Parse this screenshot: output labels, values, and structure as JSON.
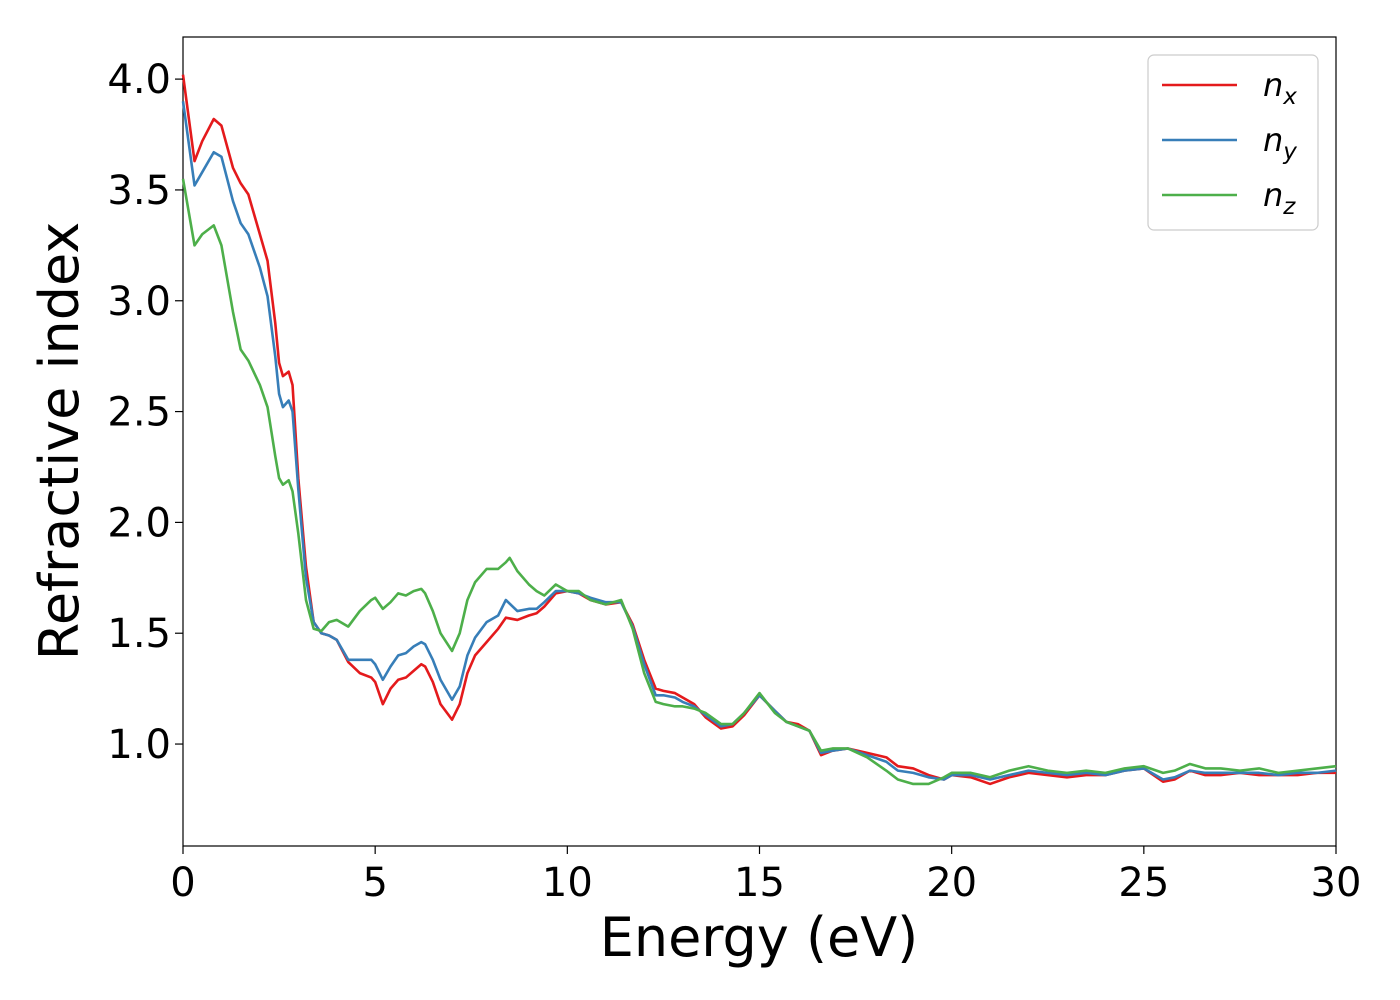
{
  "chart_data": {
    "type": "line",
    "title": "",
    "xlabel": "Energy (eV)",
    "ylabel": "Refractive index",
    "xlim": [
      0,
      30
    ],
    "ylim": [
      0.54,
      4.19
    ],
    "xticks": [
      0,
      5,
      10,
      15,
      20,
      25,
      30
    ],
    "yticks": [
      1.0,
      1.5,
      2.0,
      2.5,
      3.0,
      3.5,
      4.0
    ],
    "xtick_labels": [
      "0",
      "5",
      "10",
      "15",
      "20",
      "25",
      "30"
    ],
    "ytick_labels": [
      "1.0",
      "1.5",
      "2.0",
      "2.5",
      "3.0",
      "3.5",
      "4.0"
    ],
    "grid": false,
    "legend_position": "top-right",
    "series": [
      {
        "name": "n",
        "subscript": "x",
        "color": "#e41a1c",
        "points": [
          [
            0,
            4.02
          ],
          [
            0.3,
            3.63
          ],
          [
            0.5,
            3.72
          ],
          [
            0.8,
            3.82
          ],
          [
            1.0,
            3.79
          ],
          [
            1.3,
            3.6
          ],
          [
            1.5,
            3.53
          ],
          [
            1.7,
            3.48
          ],
          [
            2.0,
            3.3
          ],
          [
            2.2,
            3.18
          ],
          [
            2.4,
            2.9
          ],
          [
            2.5,
            2.72
          ],
          [
            2.6,
            2.66
          ],
          [
            2.75,
            2.68
          ],
          [
            2.85,
            2.62
          ],
          [
            3.0,
            2.2
          ],
          [
            3.2,
            1.8
          ],
          [
            3.4,
            1.55
          ],
          [
            3.6,
            1.5
          ],
          [
            3.8,
            1.49
          ],
          [
            4.0,
            1.47
          ],
          [
            4.3,
            1.37
          ],
          [
            4.6,
            1.32
          ],
          [
            4.9,
            1.3
          ],
          [
            5.0,
            1.28
          ],
          [
            5.2,
            1.18
          ],
          [
            5.4,
            1.25
          ],
          [
            5.6,
            1.29
          ],
          [
            5.8,
            1.3
          ],
          [
            6.0,
            1.33
          ],
          [
            6.2,
            1.36
          ],
          [
            6.3,
            1.35
          ],
          [
            6.5,
            1.28
          ],
          [
            6.7,
            1.18
          ],
          [
            7.0,
            1.11
          ],
          [
            7.2,
            1.18
          ],
          [
            7.4,
            1.32
          ],
          [
            7.6,
            1.4
          ],
          [
            7.9,
            1.46
          ],
          [
            8.2,
            1.52
          ],
          [
            8.4,
            1.57
          ],
          [
            8.7,
            1.56
          ],
          [
            9.0,
            1.58
          ],
          [
            9.2,
            1.59
          ],
          [
            9.4,
            1.62
          ],
          [
            9.7,
            1.68
          ],
          [
            10.0,
            1.69
          ],
          [
            10.3,
            1.68
          ],
          [
            10.6,
            1.65
          ],
          [
            11.0,
            1.63
          ],
          [
            11.4,
            1.64
          ],
          [
            11.7,
            1.54
          ],
          [
            12.0,
            1.38
          ],
          [
            12.3,
            1.25
          ],
          [
            12.5,
            1.24
          ],
          [
            12.8,
            1.23
          ],
          [
            13.0,
            1.21
          ],
          [
            13.3,
            1.18
          ],
          [
            13.6,
            1.12
          ],
          [
            14.0,
            1.07
          ],
          [
            14.3,
            1.08
          ],
          [
            14.6,
            1.13
          ],
          [
            15.0,
            1.22
          ],
          [
            15.4,
            1.15
          ],
          [
            15.7,
            1.1
          ],
          [
            16.0,
            1.09
          ],
          [
            16.3,
            1.06
          ],
          [
            16.6,
            0.95
          ],
          [
            16.9,
            0.97
          ],
          [
            17.3,
            0.98
          ],
          [
            17.8,
            0.96
          ],
          [
            18.3,
            0.94
          ],
          [
            18.6,
            0.9
          ],
          [
            19.0,
            0.89
          ],
          [
            19.4,
            0.86
          ],
          [
            19.8,
            0.84
          ],
          [
            20.0,
            0.86
          ],
          [
            20.5,
            0.85
          ],
          [
            21.0,
            0.82
          ],
          [
            21.5,
            0.85
          ],
          [
            22.0,
            0.87
          ],
          [
            22.5,
            0.86
          ],
          [
            23.0,
            0.85
          ],
          [
            23.5,
            0.86
          ],
          [
            24.0,
            0.86
          ],
          [
            24.5,
            0.88
          ],
          [
            25.0,
            0.89
          ],
          [
            25.5,
            0.83
          ],
          [
            25.8,
            0.84
          ],
          [
            26.2,
            0.88
          ],
          [
            26.6,
            0.86
          ],
          [
            27.0,
            0.86
          ],
          [
            27.5,
            0.87
          ],
          [
            28.0,
            0.86
          ],
          [
            28.5,
            0.86
          ],
          [
            29.0,
            0.86
          ],
          [
            29.5,
            0.87
          ],
          [
            30.0,
            0.87
          ]
        ]
      },
      {
        "name": "n",
        "subscript": "y",
        "color": "#377eb8",
        "points": [
          [
            0,
            3.9
          ],
          [
            0.3,
            3.52
          ],
          [
            0.5,
            3.58
          ],
          [
            0.8,
            3.67
          ],
          [
            1.0,
            3.65
          ],
          [
            1.3,
            3.45
          ],
          [
            1.5,
            3.35
          ],
          [
            1.7,
            3.3
          ],
          [
            2.0,
            3.15
          ],
          [
            2.2,
            3.02
          ],
          [
            2.4,
            2.75
          ],
          [
            2.5,
            2.58
          ],
          [
            2.6,
            2.52
          ],
          [
            2.75,
            2.55
          ],
          [
            2.85,
            2.5
          ],
          [
            3.0,
            2.15
          ],
          [
            3.2,
            1.75
          ],
          [
            3.4,
            1.55
          ],
          [
            3.6,
            1.5
          ],
          [
            3.8,
            1.49
          ],
          [
            4.0,
            1.47
          ],
          [
            4.3,
            1.38
          ],
          [
            4.6,
            1.38
          ],
          [
            4.9,
            1.38
          ],
          [
            5.0,
            1.36
          ],
          [
            5.2,
            1.29
          ],
          [
            5.4,
            1.35
          ],
          [
            5.6,
            1.4
          ],
          [
            5.8,
            1.41
          ],
          [
            6.0,
            1.44
          ],
          [
            6.2,
            1.46
          ],
          [
            6.3,
            1.45
          ],
          [
            6.5,
            1.38
          ],
          [
            6.7,
            1.29
          ],
          [
            7.0,
            1.2
          ],
          [
            7.2,
            1.26
          ],
          [
            7.4,
            1.4
          ],
          [
            7.6,
            1.48
          ],
          [
            7.9,
            1.55
          ],
          [
            8.2,
            1.58
          ],
          [
            8.4,
            1.65
          ],
          [
            8.7,
            1.6
          ],
          [
            9.0,
            1.61
          ],
          [
            9.2,
            1.61
          ],
          [
            9.4,
            1.64
          ],
          [
            9.7,
            1.69
          ],
          [
            10.0,
            1.69
          ],
          [
            10.3,
            1.68
          ],
          [
            10.6,
            1.66
          ],
          [
            11.0,
            1.64
          ],
          [
            11.4,
            1.64
          ],
          [
            11.7,
            1.53
          ],
          [
            12.0,
            1.36
          ],
          [
            12.3,
            1.22
          ],
          [
            12.5,
            1.22
          ],
          [
            12.8,
            1.21
          ],
          [
            13.0,
            1.19
          ],
          [
            13.3,
            1.17
          ],
          [
            13.6,
            1.13
          ],
          [
            14.0,
            1.08
          ],
          [
            14.3,
            1.09
          ],
          [
            14.6,
            1.14
          ],
          [
            15.0,
            1.22
          ],
          [
            15.4,
            1.15
          ],
          [
            15.7,
            1.1
          ],
          [
            16.0,
            1.08
          ],
          [
            16.3,
            1.06
          ],
          [
            16.6,
            0.96
          ],
          [
            16.9,
            0.97
          ],
          [
            17.3,
            0.98
          ],
          [
            17.8,
            0.95
          ],
          [
            18.3,
            0.92
          ],
          [
            18.6,
            0.88
          ],
          [
            19.0,
            0.87
          ],
          [
            19.4,
            0.85
          ],
          [
            19.8,
            0.84
          ],
          [
            20.0,
            0.86
          ],
          [
            20.5,
            0.86
          ],
          [
            21.0,
            0.84
          ],
          [
            21.5,
            0.86
          ],
          [
            22.0,
            0.88
          ],
          [
            22.5,
            0.87
          ],
          [
            23.0,
            0.86
          ],
          [
            23.5,
            0.87
          ],
          [
            24.0,
            0.86
          ],
          [
            24.5,
            0.88
          ],
          [
            25.0,
            0.89
          ],
          [
            25.5,
            0.84
          ],
          [
            25.8,
            0.85
          ],
          [
            26.2,
            0.88
          ],
          [
            26.6,
            0.87
          ],
          [
            27.0,
            0.87
          ],
          [
            27.5,
            0.87
          ],
          [
            28.0,
            0.87
          ],
          [
            28.5,
            0.86
          ],
          [
            29.0,
            0.87
          ],
          [
            29.5,
            0.87
          ],
          [
            30.0,
            0.88
          ]
        ]
      },
      {
        "name": "n",
        "subscript": "z",
        "color": "#4daf4a",
        "points": [
          [
            0,
            3.55
          ],
          [
            0.3,
            3.25
          ],
          [
            0.5,
            3.3
          ],
          [
            0.8,
            3.34
          ],
          [
            1.0,
            3.25
          ],
          [
            1.3,
            2.95
          ],
          [
            1.5,
            2.78
          ],
          [
            1.7,
            2.73
          ],
          [
            2.0,
            2.62
          ],
          [
            2.2,
            2.52
          ],
          [
            2.4,
            2.3
          ],
          [
            2.5,
            2.2
          ],
          [
            2.6,
            2.17
          ],
          [
            2.75,
            2.19
          ],
          [
            2.85,
            2.14
          ],
          [
            3.0,
            1.95
          ],
          [
            3.2,
            1.65
          ],
          [
            3.4,
            1.52
          ],
          [
            3.6,
            1.51
          ],
          [
            3.8,
            1.55
          ],
          [
            4.0,
            1.56
          ],
          [
            4.3,
            1.53
          ],
          [
            4.6,
            1.6
          ],
          [
            4.9,
            1.65
          ],
          [
            5.0,
            1.66
          ],
          [
            5.2,
            1.61
          ],
          [
            5.4,
            1.64
          ],
          [
            5.6,
            1.68
          ],
          [
            5.8,
            1.67
          ],
          [
            6.0,
            1.69
          ],
          [
            6.2,
            1.7
          ],
          [
            6.3,
            1.68
          ],
          [
            6.5,
            1.6
          ],
          [
            6.7,
            1.5
          ],
          [
            7.0,
            1.42
          ],
          [
            7.2,
            1.5
          ],
          [
            7.4,
            1.65
          ],
          [
            7.6,
            1.73
          ],
          [
            7.9,
            1.79
          ],
          [
            8.2,
            1.79
          ],
          [
            8.4,
            1.82
          ],
          [
            8.5,
            1.84
          ],
          [
            8.7,
            1.78
          ],
          [
            9.0,
            1.72
          ],
          [
            9.2,
            1.69
          ],
          [
            9.4,
            1.67
          ],
          [
            9.7,
            1.72
          ],
          [
            10.0,
            1.69
          ],
          [
            10.3,
            1.69
          ],
          [
            10.6,
            1.65
          ],
          [
            11.0,
            1.63
          ],
          [
            11.4,
            1.65
          ],
          [
            11.7,
            1.52
          ],
          [
            12.0,
            1.32
          ],
          [
            12.3,
            1.19
          ],
          [
            12.5,
            1.18
          ],
          [
            12.8,
            1.17
          ],
          [
            13.0,
            1.17
          ],
          [
            13.3,
            1.16
          ],
          [
            13.6,
            1.14
          ],
          [
            14.0,
            1.09
          ],
          [
            14.3,
            1.09
          ],
          [
            14.6,
            1.14
          ],
          [
            15.0,
            1.23
          ],
          [
            15.4,
            1.14
          ],
          [
            15.7,
            1.1
          ],
          [
            16.0,
            1.08
          ],
          [
            16.3,
            1.06
          ],
          [
            16.6,
            0.97
          ],
          [
            16.9,
            0.98
          ],
          [
            17.3,
            0.98
          ],
          [
            17.8,
            0.94
          ],
          [
            18.3,
            0.88
          ],
          [
            18.6,
            0.84
          ],
          [
            19.0,
            0.82
          ],
          [
            19.4,
            0.82
          ],
          [
            19.8,
            0.85
          ],
          [
            20.0,
            0.87
          ],
          [
            20.5,
            0.87
          ],
          [
            21.0,
            0.85
          ],
          [
            21.5,
            0.88
          ],
          [
            22.0,
            0.9
          ],
          [
            22.5,
            0.88
          ],
          [
            23.0,
            0.87
          ],
          [
            23.5,
            0.88
          ],
          [
            24.0,
            0.87
          ],
          [
            24.5,
            0.89
          ],
          [
            25.0,
            0.9
          ],
          [
            25.5,
            0.87
          ],
          [
            25.8,
            0.88
          ],
          [
            26.2,
            0.91
          ],
          [
            26.6,
            0.89
          ],
          [
            27.0,
            0.89
          ],
          [
            27.5,
            0.88
          ],
          [
            28.0,
            0.89
          ],
          [
            28.5,
            0.87
          ],
          [
            29.0,
            0.88
          ],
          [
            29.5,
            0.89
          ],
          [
            30.0,
            0.9
          ]
        ]
      }
    ]
  }
}
